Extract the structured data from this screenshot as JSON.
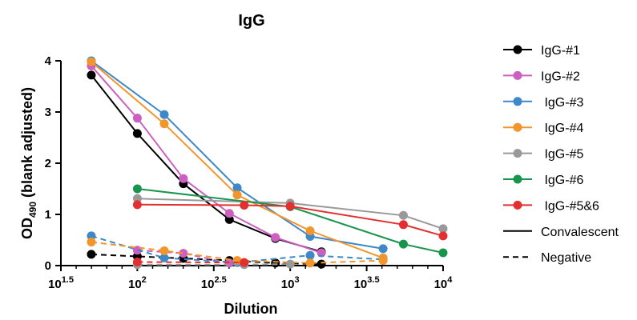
{
  "chart_data": {
    "type": "line",
    "title": "IgG",
    "xlabel": "Dilution",
    "ylabel": {
      "prefix": "OD",
      "subscript": "490",
      "suffix": " (blank adjusted)"
    },
    "x_scale": "log10",
    "xlim": [
      31.62,
      10000
    ],
    "ylim": [
      0,
      4
    ],
    "grid": false,
    "legend_position": "right",
    "x_ticks": [
      {
        "value": 31.62,
        "base": "10",
        "exp": "1.5"
      },
      {
        "value": 100,
        "base": "10",
        "exp": "2"
      },
      {
        "value": 316.2,
        "base": "10",
        "exp": "2.5"
      },
      {
        "value": 1000,
        "base": "10",
        "exp": "3"
      },
      {
        "value": 3162,
        "base": "10",
        "exp": "3.5"
      },
      {
        "value": 10000,
        "base": "10",
        "exp": "4"
      }
    ],
    "y_ticks": [
      {
        "value": 0,
        "label": "0"
      },
      {
        "value": 1,
        "label": "1"
      },
      {
        "value": 2,
        "label": "2"
      },
      {
        "value": 3,
        "label": "3"
      },
      {
        "value": 4,
        "label": "4"
      }
    ],
    "series": [
      {
        "name": "IgG-#1",
        "color": "#000000",
        "style": "solid",
        "x": [
          50,
          100,
          200,
          400,
          800,
          1600
        ],
        "y": [
          3.72,
          2.58,
          1.6,
          0.9,
          0.53,
          0.27
        ]
      },
      {
        "name": "IgG-#1",
        "color": "#000000",
        "style": "dashed",
        "x": [
          50,
          100,
          200,
          400,
          800,
          1600
        ],
        "y": [
          0.22,
          0.18,
          0.14,
          0.1,
          0.05,
          0.03
        ]
      },
      {
        "name": "IgG-#2",
        "color": "#cc5fc0",
        "style": "solid",
        "x": [
          50,
          100,
          200,
          400,
          800,
          1600
        ],
        "y": [
          3.9,
          2.88,
          1.7,
          1.02,
          0.55,
          0.25
        ]
      },
      {
        "name": "IgG-#2",
        "color": "#cc5fc0",
        "style": "dashed",
        "x": [
          100,
          200,
          400
        ],
        "y": [
          0.3,
          0.24,
          0.05
        ]
      },
      {
        "name": "IgG-#3",
        "color": "#3d88c9",
        "style": "solid",
        "x": [
          50,
          150,
          450,
          1350,
          4050
        ],
        "y": [
          4.0,
          2.95,
          1.52,
          0.57,
          0.33
        ]
      },
      {
        "name": "IgG-#3",
        "color": "#3d88c9",
        "style": "dashed",
        "x": [
          50,
          150,
          450,
          1350,
          4050
        ],
        "y": [
          0.58,
          0.15,
          0.06,
          0.2,
          0.12
        ]
      },
      {
        "name": "IgG-#4",
        "color": "#f2952c",
        "style": "solid",
        "x": [
          50,
          150,
          450,
          1350,
          4050
        ],
        "y": [
          3.98,
          2.77,
          1.38,
          0.68,
          0.15
        ]
      },
      {
        "name": "IgG-#4",
        "color": "#f2952c",
        "style": "dashed",
        "x": [
          50,
          150,
          450,
          1350,
          4050
        ],
        "y": [
          0.46,
          0.29,
          0.1,
          0.05,
          0.1
        ]
      },
      {
        "name": "IgG-#5",
        "color": "#999999",
        "style": "solid",
        "x": [
          100,
          1000,
          5500,
          10000
        ],
        "y": [
          1.31,
          1.22,
          0.98,
          0.72
        ]
      },
      {
        "name": "IgG-#5",
        "color": "#999999",
        "style": "dashed",
        "x": [
          100,
          500,
          1000
        ],
        "y": [
          0.02,
          0.02,
          0.03
        ]
      },
      {
        "name": "IgG-#6",
        "color": "#18944d",
        "style": "solid",
        "x": [
          100,
          1000,
          5500,
          10000
        ],
        "y": [
          1.5,
          1.15,
          0.42,
          0.25
        ]
      },
      {
        "name": "IgG-#5&6",
        "color": "#e32f2f",
        "style": "solid",
        "x": [
          100,
          500,
          1000,
          5500,
          10000
        ],
        "y": [
          1.19,
          1.18,
          1.16,
          0.8,
          0.58
        ]
      },
      {
        "name": "IgG-#5&6",
        "color": "#e32f2f",
        "style": "dashed",
        "x": [
          100,
          500
        ],
        "y": [
          0.07,
          0.06
        ]
      }
    ],
    "legend": [
      {
        "label": "IgG-#1",
        "color": "#000000",
        "kind": "marker"
      },
      {
        "label": "IgG-#2",
        "color": "#cc5fc0",
        "kind": "marker"
      },
      {
        "label": " IgG-#3",
        "color": "#3d88c9",
        "kind": "marker"
      },
      {
        "label": " IgG-#4",
        "color": "#f2952c",
        "kind": "marker"
      },
      {
        "label": " IgG-#5",
        "color": "#999999",
        "kind": "marker"
      },
      {
        "label": " IgG-#6",
        "color": "#18944d",
        "kind": "marker"
      },
      {
        "label": " IgG-#5&6",
        "color": "#e32f2f",
        "kind": "marker"
      },
      {
        "label": "Convalescent",
        "color": "#000000",
        "kind": "solid"
      },
      {
        "label": "Negative",
        "color": "#000000",
        "kind": "dashed"
      }
    ]
  }
}
